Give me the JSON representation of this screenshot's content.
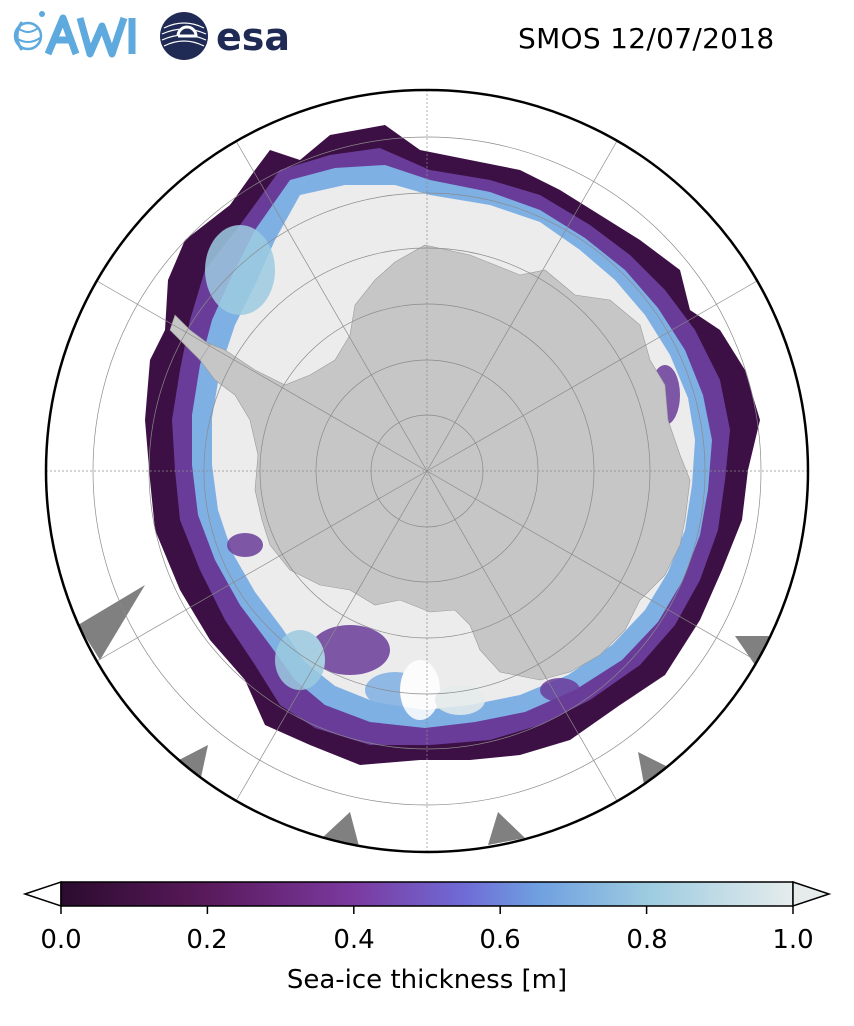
{
  "header": {
    "title": "SMOS 12/07/2018",
    "logos": [
      {
        "name": "AWI",
        "text": "AWI"
      },
      {
        "name": "esa",
        "text": "esa"
      }
    ]
  },
  "map": {
    "projection": "south-polar-stereographic",
    "graticule": true,
    "land_color": "#c6c6c6",
    "ocean_color": "#ffffff",
    "nodata_color": "#808080",
    "ice_interior_color": "#ececec"
  },
  "colorbar": {
    "label": "Sea-ice thickness [m]",
    "ticks": [
      "0.0",
      "0.2",
      "0.4",
      "0.6",
      "0.8",
      "1.0"
    ],
    "range": [
      0,
      1
    ],
    "extend": "both",
    "colormap": [
      "#2b0b2e",
      "#5a1a5c",
      "#7b3aa0",
      "#6f6bd6",
      "#6f9fe0",
      "#9ccbe0",
      "#e6ecec"
    ]
  }
}
